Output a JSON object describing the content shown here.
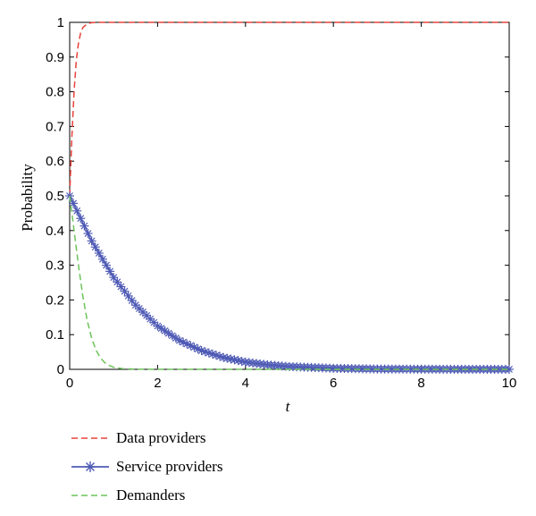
{
  "chart_data": {
    "type": "line",
    "xlabel": "t",
    "ylabel": "Probability",
    "xlim": [
      0,
      10
    ],
    "ylim": [
      0,
      1
    ],
    "xticks": [
      "0",
      "2",
      "4",
      "6",
      "8",
      "10"
    ],
    "yticks": [
      "0",
      "0.1",
      "0.2",
      "0.3",
      "0.4",
      "0.5",
      "0.6",
      "0.7",
      "0.8",
      "0.9",
      "1"
    ],
    "grid": false,
    "legend_position": "bottom-left",
    "series": [
      {
        "name": "Data providers",
        "style": "dashed",
        "color": "#e8423a",
        "x": [
          0,
          0.05,
          0.1,
          0.15,
          0.2,
          0.25,
          0.3,
          0.4,
          0.5,
          0.6,
          0.8,
          1.0,
          2,
          4,
          6,
          8,
          10
        ],
        "y": [
          0.5,
          0.67,
          0.8,
          0.89,
          0.94,
          0.97,
          0.985,
          0.996,
          0.999,
          1.0,
          1.0,
          1.0,
          1.0,
          1.0,
          1.0,
          1.0,
          1.0
        ]
      },
      {
        "name": "Service providers",
        "style": "solid-star",
        "color": "#4f5bb5",
        "x": [
          0,
          0.5,
          1,
          1.5,
          2,
          2.5,
          3,
          3.5,
          4,
          4.5,
          5,
          6,
          7,
          8,
          9,
          10
        ],
        "y": [
          0.5,
          0.37,
          0.265,
          0.185,
          0.125,
          0.083,
          0.054,
          0.034,
          0.021,
          0.013,
          0.008,
          0.003,
          0.001,
          0.0005,
          0.0002,
          0.0001
        ]
      },
      {
        "name": "Demanders",
        "style": "dashed",
        "color": "#6cc35a",
        "x": [
          0,
          0.1,
          0.2,
          0.3,
          0.4,
          0.5,
          0.6,
          0.7,
          0.8,
          0.9,
          1.0,
          1.2,
          1.5,
          2,
          4,
          6,
          8,
          10
        ],
        "y": [
          0.5,
          0.4,
          0.3,
          0.21,
          0.14,
          0.09,
          0.055,
          0.033,
          0.019,
          0.011,
          0.006,
          0.002,
          0.0005,
          0,
          0,
          0,
          0,
          0
        ]
      }
    ]
  }
}
